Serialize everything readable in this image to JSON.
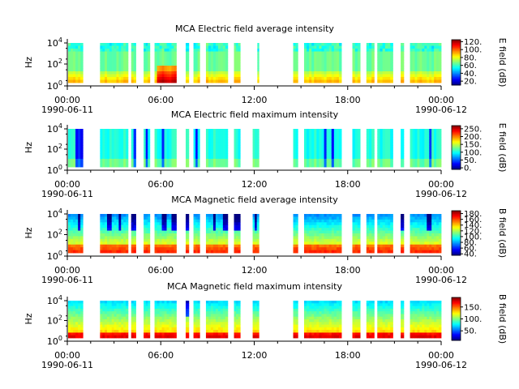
{
  "chart_data": [
    {
      "type": "heatmap",
      "title": "MCA  Electric field average intensity",
      "ylabel": "Hz",
      "yticks": [
        "10^4",
        "10^2",
        "10^0"
      ],
      "xticks": [
        "00:00",
        "06:00",
        "12:00",
        "18:00",
        "00:00"
      ],
      "start_date": "1990-06-11",
      "end_date": "1990-06-12",
      "colorbar_label": "E field (dB)",
      "colorbar_ticks": [
        "120.",
        "100.",
        "80.",
        "60.",
        "40.",
        "20."
      ],
      "colorbar_values": [
        120,
        100,
        80,
        60,
        40,
        20
      ],
      "colorbar_range": [
        10,
        125
      ],
      "data_intervals_hours": [
        [
          0.05,
          1.0
        ],
        [
          2.1,
          3.9
        ],
        [
          4.1,
          4.4
        ],
        [
          4.9,
          5.3
        ],
        [
          5.6,
          7.0
        ],
        [
          7.6,
          7.8
        ],
        [
          8.1,
          8.5
        ],
        [
          8.9,
          10.3
        ],
        [
          10.7,
          11.1
        ],
        [
          12.2,
          12.3
        ],
        [
          14.5,
          14.8
        ],
        [
          15.2,
          17.6
        ],
        [
          18.3,
          18.8
        ],
        [
          19.2,
          19.7
        ],
        [
          19.9,
          20.9
        ],
        [
          21.4,
          21.6
        ],
        [
          22.0,
          24.0
        ]
      ],
      "baseline_db": 60
    },
    {
      "type": "heatmap",
      "title": "MCA  Electric field maximum intensity",
      "ylabel": "Hz",
      "yticks": [
        "10^4",
        "10^2",
        "10^0"
      ],
      "xticks": [
        "00:00",
        "06:00",
        "12:00",
        "18:00",
        "00:00"
      ],
      "start_date": "1990-06-11",
      "end_date": "1990-06-12",
      "colorbar_label": "E field (dB)",
      "colorbar_ticks": [
        "250.",
        "200.",
        "150.",
        "100.",
        "50.",
        "0."
      ],
      "colorbar_values": [
        250,
        200,
        150,
        100,
        50,
        0
      ],
      "colorbar_range": [
        -10,
        270
      ],
      "data_intervals_hours": [
        [
          0.05,
          1.0
        ],
        [
          2.1,
          3.9
        ],
        [
          4.1,
          4.4
        ],
        [
          4.9,
          5.3
        ],
        [
          5.6,
          7.0
        ],
        [
          7.6,
          7.8
        ],
        [
          8.1,
          8.5
        ],
        [
          8.9,
          10.3
        ],
        [
          10.7,
          11.1
        ],
        [
          11.9,
          12.3
        ],
        [
          14.5,
          14.8
        ],
        [
          15.2,
          17.6
        ],
        [
          18.3,
          18.8
        ],
        [
          19.2,
          19.7
        ],
        [
          19.9,
          20.9
        ],
        [
          21.4,
          21.6
        ],
        [
          22.0,
          24.0
        ]
      ],
      "baseline_db": 120
    },
    {
      "type": "heatmap",
      "title": "MCA  Magnetic field average intensity",
      "ylabel": "Hz",
      "yticks": [
        "10^4",
        "10^2",
        "10^0"
      ],
      "xticks": [
        "00:00",
        "06:00",
        "12:00",
        "18:00",
        "00:00"
      ],
      "start_date": "1990-06-11",
      "end_date": "1990-06-12",
      "colorbar_label": "B field (dB)",
      "colorbar_ticks": [
        "180.",
        "160.",
        "140.",
        "120.",
        "100.",
        "80.",
        "60.",
        "40."
      ],
      "colorbar_values": [
        180,
        160,
        140,
        120,
        100,
        80,
        60,
        40
      ],
      "colorbar_range": [
        35,
        190
      ],
      "data_intervals_hours": [
        [
          0.05,
          1.0
        ],
        [
          2.1,
          3.9
        ],
        [
          4.1,
          4.4
        ],
        [
          4.9,
          5.3
        ],
        [
          5.6,
          7.0
        ],
        [
          7.6,
          7.8
        ],
        [
          8.1,
          8.5
        ],
        [
          8.9,
          10.3
        ],
        [
          10.7,
          11.1
        ],
        [
          11.9,
          12.3
        ],
        [
          14.5,
          14.8
        ],
        [
          15.2,
          17.6
        ],
        [
          18.3,
          18.8
        ],
        [
          19.2,
          19.7
        ],
        [
          19.9,
          20.9
        ],
        [
          21.4,
          21.6
        ],
        [
          22.0,
          24.0
        ]
      ],
      "baseline_db": 110
    },
    {
      "type": "heatmap",
      "title": "MCA  Magnetic field maximum intensity",
      "ylabel": "Hz",
      "yticks": [
        "10^4",
        "10^2",
        "10^0"
      ],
      "xticks": [
        "00:00",
        "06:00",
        "12:00",
        "18:00",
        "00:00"
      ],
      "start_date": "1990-06-11",
      "end_date": "1990-06-12",
      "colorbar_label": "B field (dB)",
      "colorbar_ticks": [
        "150.",
        "100.",
        "50."
      ],
      "colorbar_values": [
        150,
        100,
        50
      ],
      "colorbar_range": [
        10,
        190
      ],
      "data_intervals_hours": [
        [
          0.05,
          1.0
        ],
        [
          2.1,
          3.9
        ],
        [
          4.1,
          4.4
        ],
        [
          4.9,
          5.3
        ],
        [
          5.6,
          7.0
        ],
        [
          7.6,
          7.8
        ],
        [
          8.1,
          8.5
        ],
        [
          8.9,
          10.3
        ],
        [
          10.7,
          11.1
        ],
        [
          11.9,
          12.3
        ],
        [
          14.5,
          14.8
        ],
        [
          15.2,
          17.6
        ],
        [
          18.3,
          18.8
        ],
        [
          19.2,
          19.7
        ],
        [
          19.9,
          20.9
        ],
        [
          21.4,
          21.6
        ],
        [
          22.0,
          24.0
        ]
      ],
      "baseline_db": 110
    }
  ]
}
